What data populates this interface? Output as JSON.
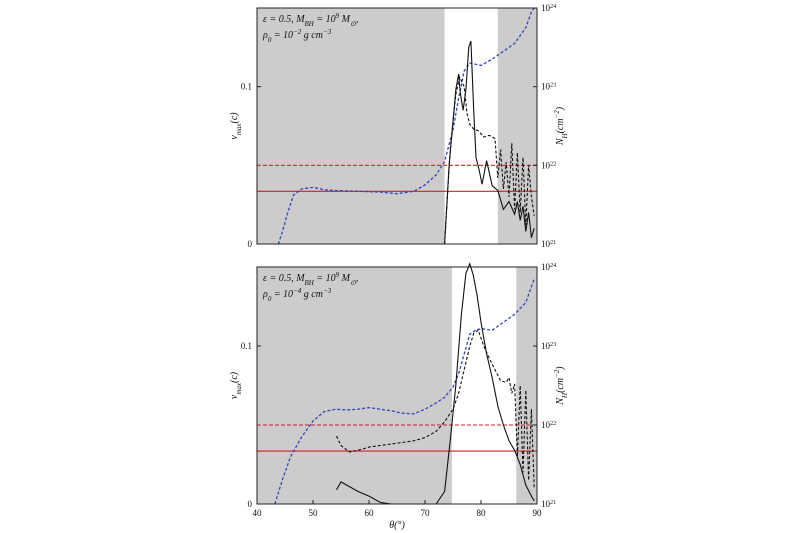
{
  "chart_data": [
    {
      "type": "line",
      "annotation": [
        "ε = 0.5, M_BH = 10^9 M_⊙,",
        "ρ_0 = 10^−2 g cm^−3"
      ],
      "xlim": [
        40,
        90
      ],
      "ylim_left": [
        0,
        0.15
      ],
      "ylim_right_log": [
        21,
        24
      ],
      "x_ticks": [],
      "y_ticks_left": [
        {
          "v": 0,
          "label": "0"
        },
        {
          "v": 0.1,
          "label": "0.1"
        }
      ],
      "y_ticks_right": [
        {
          "v": 21,
          "label": "10^21"
        },
        {
          "v": 22,
          "label": "10^22"
        },
        {
          "v": 23,
          "label": "10^23"
        },
        {
          "v": 24,
          "label": "10^24"
        }
      ],
      "ylabel_left": "v_max(c)",
      "ylabel_right": "N_H(cm^−2)",
      "shaded_regions": [
        [
          40,
          73.5
        ],
        [
          83,
          90
        ]
      ],
      "hlines": [
        {
          "y": 0.05,
          "color": "#cc2222",
          "style": "dashed"
        },
        {
          "y": 0.0335,
          "color": "#cc2222",
          "style": "solid"
        }
      ],
      "series": [
        {
          "axis": "right",
          "color": "#3344bb",
          "style": "dashed",
          "x": [
            43.8,
            44.5,
            45.5,
            46.5,
            48,
            50,
            52,
            54,
            58,
            62,
            65,
            68,
            70,
            72,
            73.5,
            75,
            76,
            77,
            78,
            80,
            82,
            84,
            86,
            88,
            89,
            89.5
          ],
          "y": [
            21.0,
            21.15,
            21.4,
            21.62,
            21.7,
            21.72,
            21.69,
            21.68,
            21.67,
            21.66,
            21.64,
            21.67,
            21.75,
            21.88,
            22.05,
            22.45,
            22.85,
            23.2,
            23.3,
            23.27,
            23.35,
            23.45,
            23.55,
            23.75,
            23.95,
            24.0
          ]
        },
        {
          "axis": "left",
          "color": "#111111",
          "style": "solid",
          "x": [
            73.5,
            74.3,
            74.8,
            75.5,
            76,
            76.3,
            76.8,
            77.3,
            77.8,
            78.2,
            78.7,
            79.1,
            79.6,
            80.2,
            81,
            82,
            83,
            84,
            85,
            86,
            86.5,
            87,
            87.5,
            88,
            88.5,
            89,
            89.5
          ],
          "y": [
            0,
            0.05,
            0.07,
            0.098,
            0.108,
            0.096,
            0.085,
            0.098,
            0.125,
            0.129,
            0.085,
            0.055,
            0.048,
            0.038,
            0.053,
            0.037,
            0.034,
            0.022,
            0.027,
            0.019,
            0.027,
            0.015,
            0.024,
            0.008,
            0.02,
            0.004,
            0.01
          ]
        },
        {
          "axis": "left",
          "color": "#111111",
          "style": "dashed",
          "x": [
            73.5,
            74.5,
            75.5,
            76.2,
            77,
            77.5,
            78,
            78.7,
            79.5,
            80.5,
            81.5,
            82.5,
            83,
            83.5,
            84,
            84.5,
            85,
            85.5,
            86,
            86.5,
            87,
            87.5,
            88,
            88.5,
            89,
            89.5
          ],
          "y": [
            0,
            0.06,
            0.095,
            0.106,
            0.1,
            0.083,
            0.076,
            0.073,
            0.072,
            0.068,
            0.069,
            0.067,
            0.042,
            0.06,
            0.035,
            0.052,
            0.03,
            0.064,
            0.022,
            0.058,
            0.02,
            0.055,
            0.012,
            0.05,
            0.03,
            0.018
          ]
        }
      ]
    },
    {
      "type": "line",
      "annotation": [
        "ε = 0.5, M_BH = 10^9 M_⊙,",
        "ρ_0 = 10^−4 g cm^−3"
      ],
      "xlim": [
        40,
        90
      ],
      "ylim_left": [
        0,
        0.15
      ],
      "ylim_right_log": [
        21,
        24
      ],
      "x_ticks": [
        {
          "v": 40,
          "label": "40"
        },
        {
          "v": 50,
          "label": "50"
        },
        {
          "v": 60,
          "label": "60"
        },
        {
          "v": 70,
          "label": "70"
        },
        {
          "v": 80,
          "label": "80"
        },
        {
          "v": 90,
          "label": "90"
        }
      ],
      "y_ticks_left": [
        {
          "v": 0,
          "label": "0"
        },
        {
          "v": 0.1,
          "label": "0.1"
        }
      ],
      "y_ticks_right": [
        {
          "v": 21,
          "label": "10^21"
        },
        {
          "v": 22,
          "label": "10^22"
        },
        {
          "v": 23,
          "label": "10^23"
        },
        {
          "v": 24,
          "label": "10^24"
        }
      ],
      "xlabel": "θ(°)",
      "ylabel_left": "v_max(c)",
      "ylabel_right": "N_H(cm^−2)",
      "shaded_regions": [
        [
          40,
          74.8
        ],
        [
          86.3,
          90
        ]
      ],
      "hlines": [
        {
          "y": 0.05,
          "color": "#cc2222",
          "style": "dashed"
        },
        {
          "y": 0.0335,
          "color": "#cc2222",
          "style": "solid"
        }
      ],
      "series": [
        {
          "axis": "right",
          "color": "#3344bb",
          "style": "dashed",
          "x": [
            43.2,
            44.5,
            46,
            48,
            50,
            52,
            54,
            56,
            58,
            60,
            62,
            64,
            66,
            68,
            70,
            72,
            73.5,
            75,
            76,
            77,
            78,
            79,
            80,
            82,
            84,
            86,
            88,
            89.5
          ],
          "y": [
            21.0,
            21.3,
            21.6,
            21.85,
            22.05,
            22.17,
            22.2,
            22.19,
            22.2,
            22.22,
            22.2,
            22.18,
            22.15,
            22.14,
            22.2,
            22.28,
            22.35,
            22.48,
            22.65,
            22.9,
            23.15,
            23.2,
            23.22,
            23.2,
            23.3,
            23.4,
            23.55,
            23.85
          ]
        },
        {
          "axis": "left",
          "color": "#111111",
          "style": "solid",
          "x": [
            54.2,
            55,
            56,
            58,
            60,
            62,
            64,
            66,
            68,
            70,
            72,
            73.5,
            74.5,
            75.5,
            76.5,
            77.3,
            78,
            78.6,
            79.3,
            80,
            81,
            82,
            83,
            84,
            85,
            86,
            87,
            88,
            89,
            89.5
          ],
          "y": [
            0.009,
            0.014,
            0.012,
            0.008,
            0.005,
            0.001,
            0,
            0,
            0,
            0,
            0,
            0.008,
            0.04,
            0.075,
            0.12,
            0.146,
            0.152,
            0.145,
            0.132,
            0.115,
            0.095,
            0.08,
            0.062,
            0.05,
            0.04,
            0.034,
            0.025,
            0.012,
            0.005,
            0.002
          ]
        },
        {
          "axis": "left",
          "color": "#111111",
          "style": "dashed",
          "x": [
            54.2,
            55,
            56.5,
            58,
            60,
            62,
            64,
            66,
            68,
            70,
            72,
            73.5,
            75,
            76,
            77,
            78,
            78.7,
            79.5,
            80.5,
            81.5,
            82.5,
            83.5,
            84.5,
            85,
            85.5,
            86,
            86.5,
            87,
            87.5,
            88,
            88.5,
            89,
            89.5
          ],
          "y": [
            0.043,
            0.037,
            0.033,
            0.034,
            0.036,
            0.037,
            0.038,
            0.039,
            0.04,
            0.042,
            0.046,
            0.052,
            0.06,
            0.07,
            0.085,
            0.1,
            0.108,
            0.11,
            0.1,
            0.092,
            0.085,
            0.078,
            0.077,
            0.08,
            0.07,
            0.076,
            0.03,
            0.075,
            0.02,
            0.072,
            0.015,
            0.06,
            0.01
          ]
        }
      ]
    }
  ]
}
